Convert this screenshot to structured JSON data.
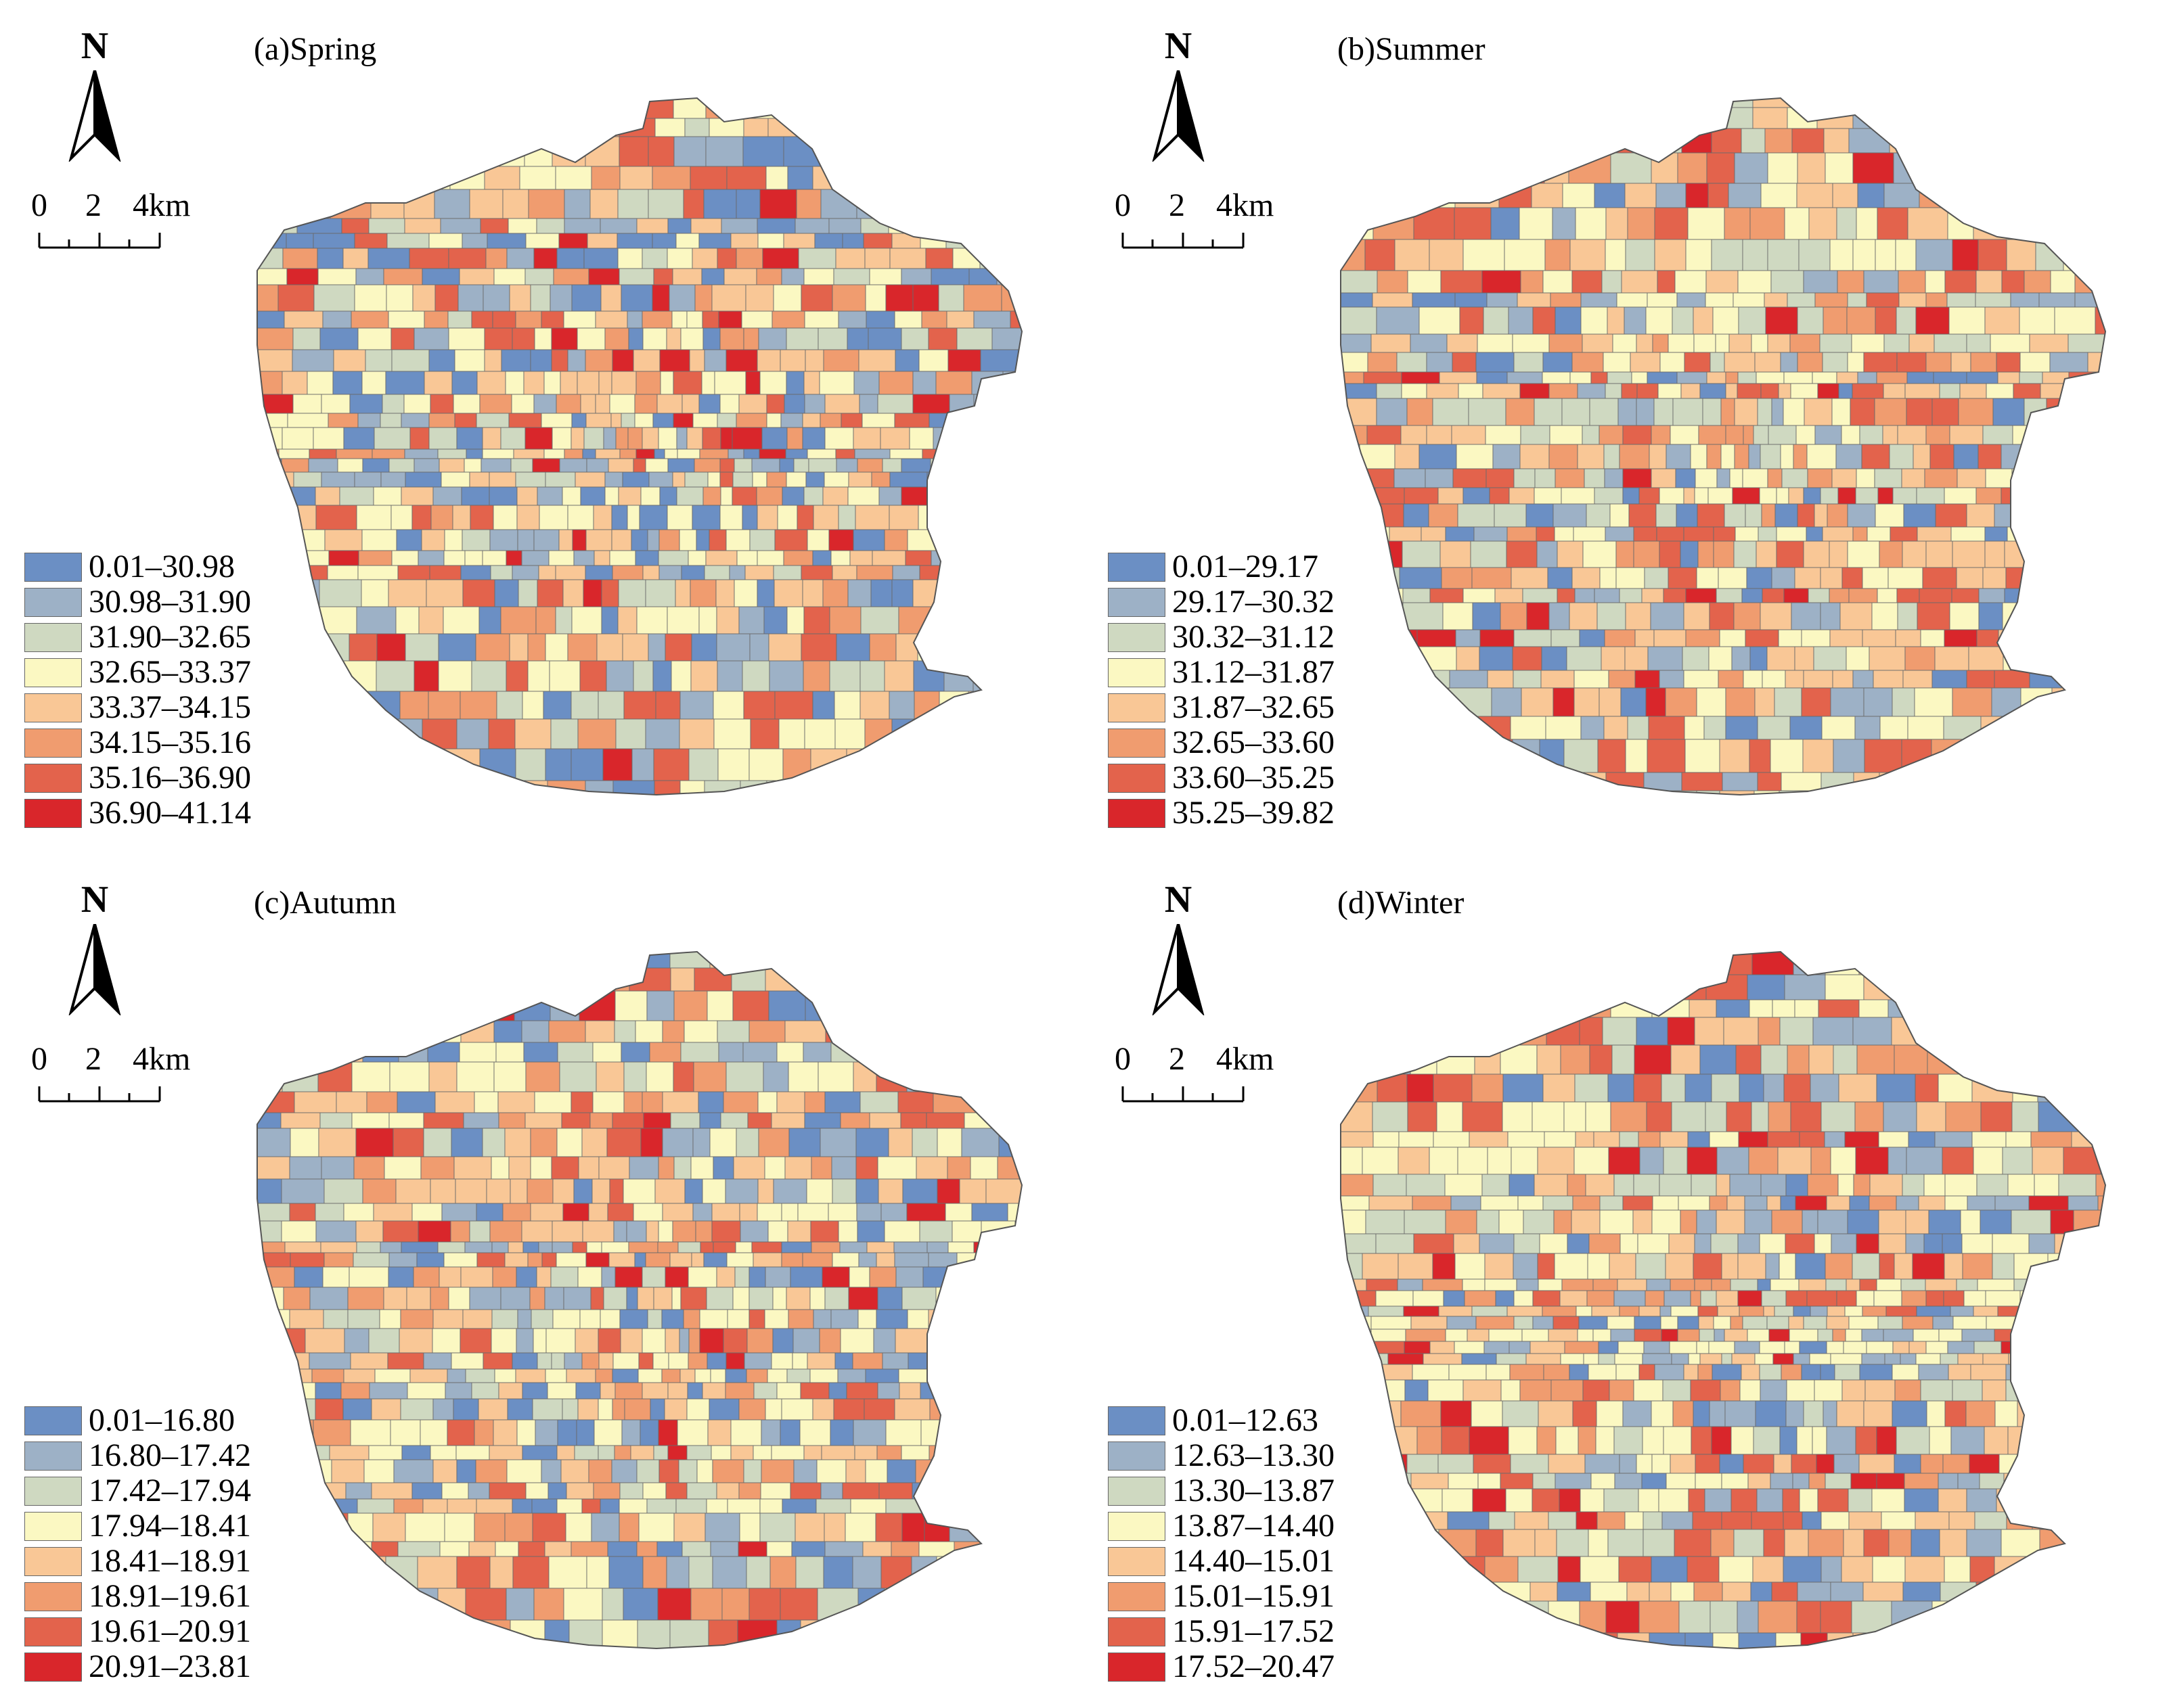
{
  "colors": [
    "#6b8fc4",
    "#9db1c6",
    "#cfd9c1",
    "#fbf8c2",
    "#f9c796",
    "#f09c6f",
    "#e3634c",
    "#d9262b"
  ],
  "north_label": "N",
  "scale": {
    "zero": "0",
    "mid": "2",
    "end": "4km"
  },
  "panels": [
    {
      "title": "(a)Spring",
      "legend": [
        "0.01–30.98",
        "30.98–31.90",
        "31.90–32.65",
        "32.65–33.37",
        "33.37–34.15",
        "34.15–35.16",
        "35.16–36.90",
        "36.90–41.14"
      ]
    },
    {
      "title": "(b)Summer",
      "legend": [
        "0.01–29.17",
        "29.17–30.32",
        "30.32–31.12",
        "31.12–31.87",
        "31.87–32.65",
        "32.65–33.60",
        "33.60–35.25",
        "35.25–39.82"
      ]
    },
    {
      "title": "(c)Autumn",
      "legend": [
        "0.01–16.80",
        "16.80–17.42",
        "17.42–17.94",
        "17.94–18.41",
        "18.41–18.91",
        "18.91–19.61",
        "19.61–20.91",
        "20.91–23.81"
      ]
    },
    {
      "title": "(d)Winter",
      "legend": [
        "0.01–12.63",
        "12.63–13.30",
        "13.30–13.87",
        "13.87–14.40",
        "14.40–15.01",
        "15.01–15.91",
        "15.91–17.52",
        "17.52–20.47"
      ]
    }
  ]
}
